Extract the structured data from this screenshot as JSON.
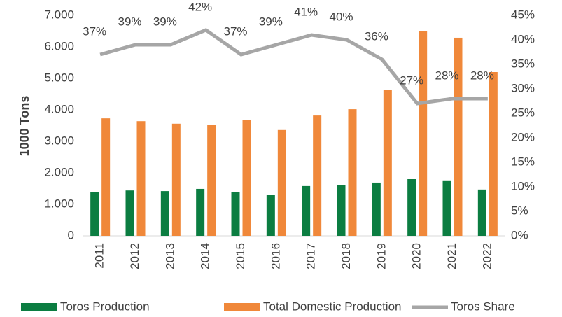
{
  "chart_data": {
    "type": "bar",
    "y_label": "1000 Tons",
    "categories": [
      "2011",
      "2012",
      "2013",
      "2014",
      "2015",
      "2016",
      "2017",
      "2018",
      "2019",
      "2020",
      "2021",
      "2022"
    ],
    "series": [
      {
        "name": "Toros Production",
        "color": "#0b7d41",
        "values": [
          1400,
          1440,
          1420,
          1490,
          1380,
          1310,
          1580,
          1620,
          1690,
          1800,
          1760,
          1470
        ]
      },
      {
        "name": "Total Domestic Production",
        "color": "#f0883a",
        "values": [
          3730,
          3640,
          3560,
          3530,
          3670,
          3360,
          3820,
          4020,
          4640,
          6510,
          6290,
          5200
        ]
      },
      {
        "name": "Toros Share",
        "type": "line",
        "axis": "y2",
        "color": "#a6a6a6",
        "values": [
          37,
          39,
          39,
          42,
          37,
          39,
          41,
          40,
          36,
          27,
          28,
          28
        ],
        "value_labels": [
          "37%",
          "39%",
          "39%",
          "42%",
          "37%",
          "39%",
          "41%",
          "40%",
          "36%",
          "27%",
          "28%",
          "28%"
        ]
      }
    ],
    "ylim": [
      0,
      7000
    ],
    "yticks": [
      0,
      {
        "value": 1000,
        "label": "1.000"
      },
      {
        "value": 2000,
        "label": "2.000"
      },
      {
        "value": 3000,
        "label": "3.000"
      },
      {
        "value": 4000,
        "label": "4.000"
      },
      {
        "value": 5000,
        "label": "5.000"
      },
      {
        "value": 6000,
        "label": "6.000"
      },
      {
        "value": 7000,
        "label": "7.000"
      }
    ],
    "y2lim": [
      0,
      45
    ],
    "y2ticks": [
      {
        "value": 0,
        "label": "0%"
      },
      {
        "value": 5,
        "label": "5%"
      },
      {
        "value": 10,
        "label": "10%"
      },
      {
        "value": 15,
        "label": "15%"
      },
      {
        "value": 20,
        "label": "20%"
      },
      {
        "value": 25,
        "label": "25%"
      },
      {
        "value": 30,
        "label": "30%"
      },
      {
        "value": 35,
        "label": "35%"
      },
      {
        "value": 40,
        "label": "40%"
      },
      {
        "value": 45,
        "label": "45%"
      }
    ],
    "legend": "bottom"
  }
}
